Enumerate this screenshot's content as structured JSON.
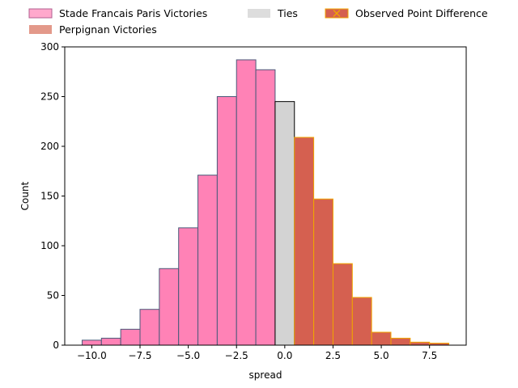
{
  "chart_data": {
    "type": "bar",
    "xlabel": "spread",
    "ylabel": "Count",
    "xlim": [
      -11.4,
      9.4
    ],
    "ylim": [
      0,
      300
    ],
    "x_ticks": [
      -10.0,
      -7.5,
      -5.0,
      -2.5,
      0.0,
      2.5,
      5.0,
      7.5
    ],
    "x_tick_labels": [
      "−10.0",
      "−7.5",
      "−5.0",
      "−2.5",
      "0.0",
      "2.5",
      "5.0",
      "7.5"
    ],
    "y_ticks": [
      0,
      50,
      100,
      150,
      200,
      250,
      300
    ],
    "y_tick_labels": [
      "0",
      "50",
      "100",
      "150",
      "200",
      "250",
      "300"
    ],
    "bin_width": 1,
    "grid": false,
    "legend": {
      "placement": "top",
      "entries": [
        {
          "label": "Stade Francais Paris Victories",
          "swatch": "stade"
        },
        {
          "label": "Perpignan Victories",
          "swatch": "perpignan"
        },
        {
          "label": "Ties",
          "swatch": "ties"
        },
        {
          "label": "Observed Point Difference",
          "swatch": "observed"
        }
      ]
    },
    "series": [
      {
        "name": "Stade Francais Paris Victories",
        "fill": "#ff82b6",
        "stroke": "#4a5a7a",
        "bins": [
          {
            "x": -10,
            "count": 5
          },
          {
            "x": -9,
            "count": 7
          },
          {
            "x": -8,
            "count": 16
          },
          {
            "x": -7,
            "count": 36
          },
          {
            "x": -6,
            "count": 77
          },
          {
            "x": -5,
            "count": 118
          },
          {
            "x": -4,
            "count": 171
          },
          {
            "x": -3,
            "count": 250
          },
          {
            "x": -2,
            "count": 287
          },
          {
            "x": -1,
            "count": 277
          }
        ]
      },
      {
        "name": "Ties",
        "fill": "#d3d3d3",
        "stroke": "#000000",
        "bins": [
          {
            "x": 0,
            "count": 245
          }
        ]
      },
      {
        "name": "Perpignan Victories",
        "fill": "#d56050",
        "stroke": "#f0a500",
        "bins": [
          {
            "x": 1,
            "count": 209
          },
          {
            "x": 2,
            "count": 147
          },
          {
            "x": 3,
            "count": 82
          },
          {
            "x": 4,
            "count": 48
          },
          {
            "x": 5,
            "count": 13
          },
          {
            "x": 6,
            "count": 7
          },
          {
            "x": 7,
            "count": 3
          },
          {
            "x": 8,
            "count": 2
          }
        ]
      }
    ],
    "colors": {
      "stade_legend_fill": "#ffa8cc",
      "stade_legend_edge": "#b06090",
      "perpignan_legend_fill": "#e3998a",
      "ties_legend_fill": "#dddddd",
      "observed_fill": "#d56050",
      "observed_edge": "#f0a500"
    }
  }
}
